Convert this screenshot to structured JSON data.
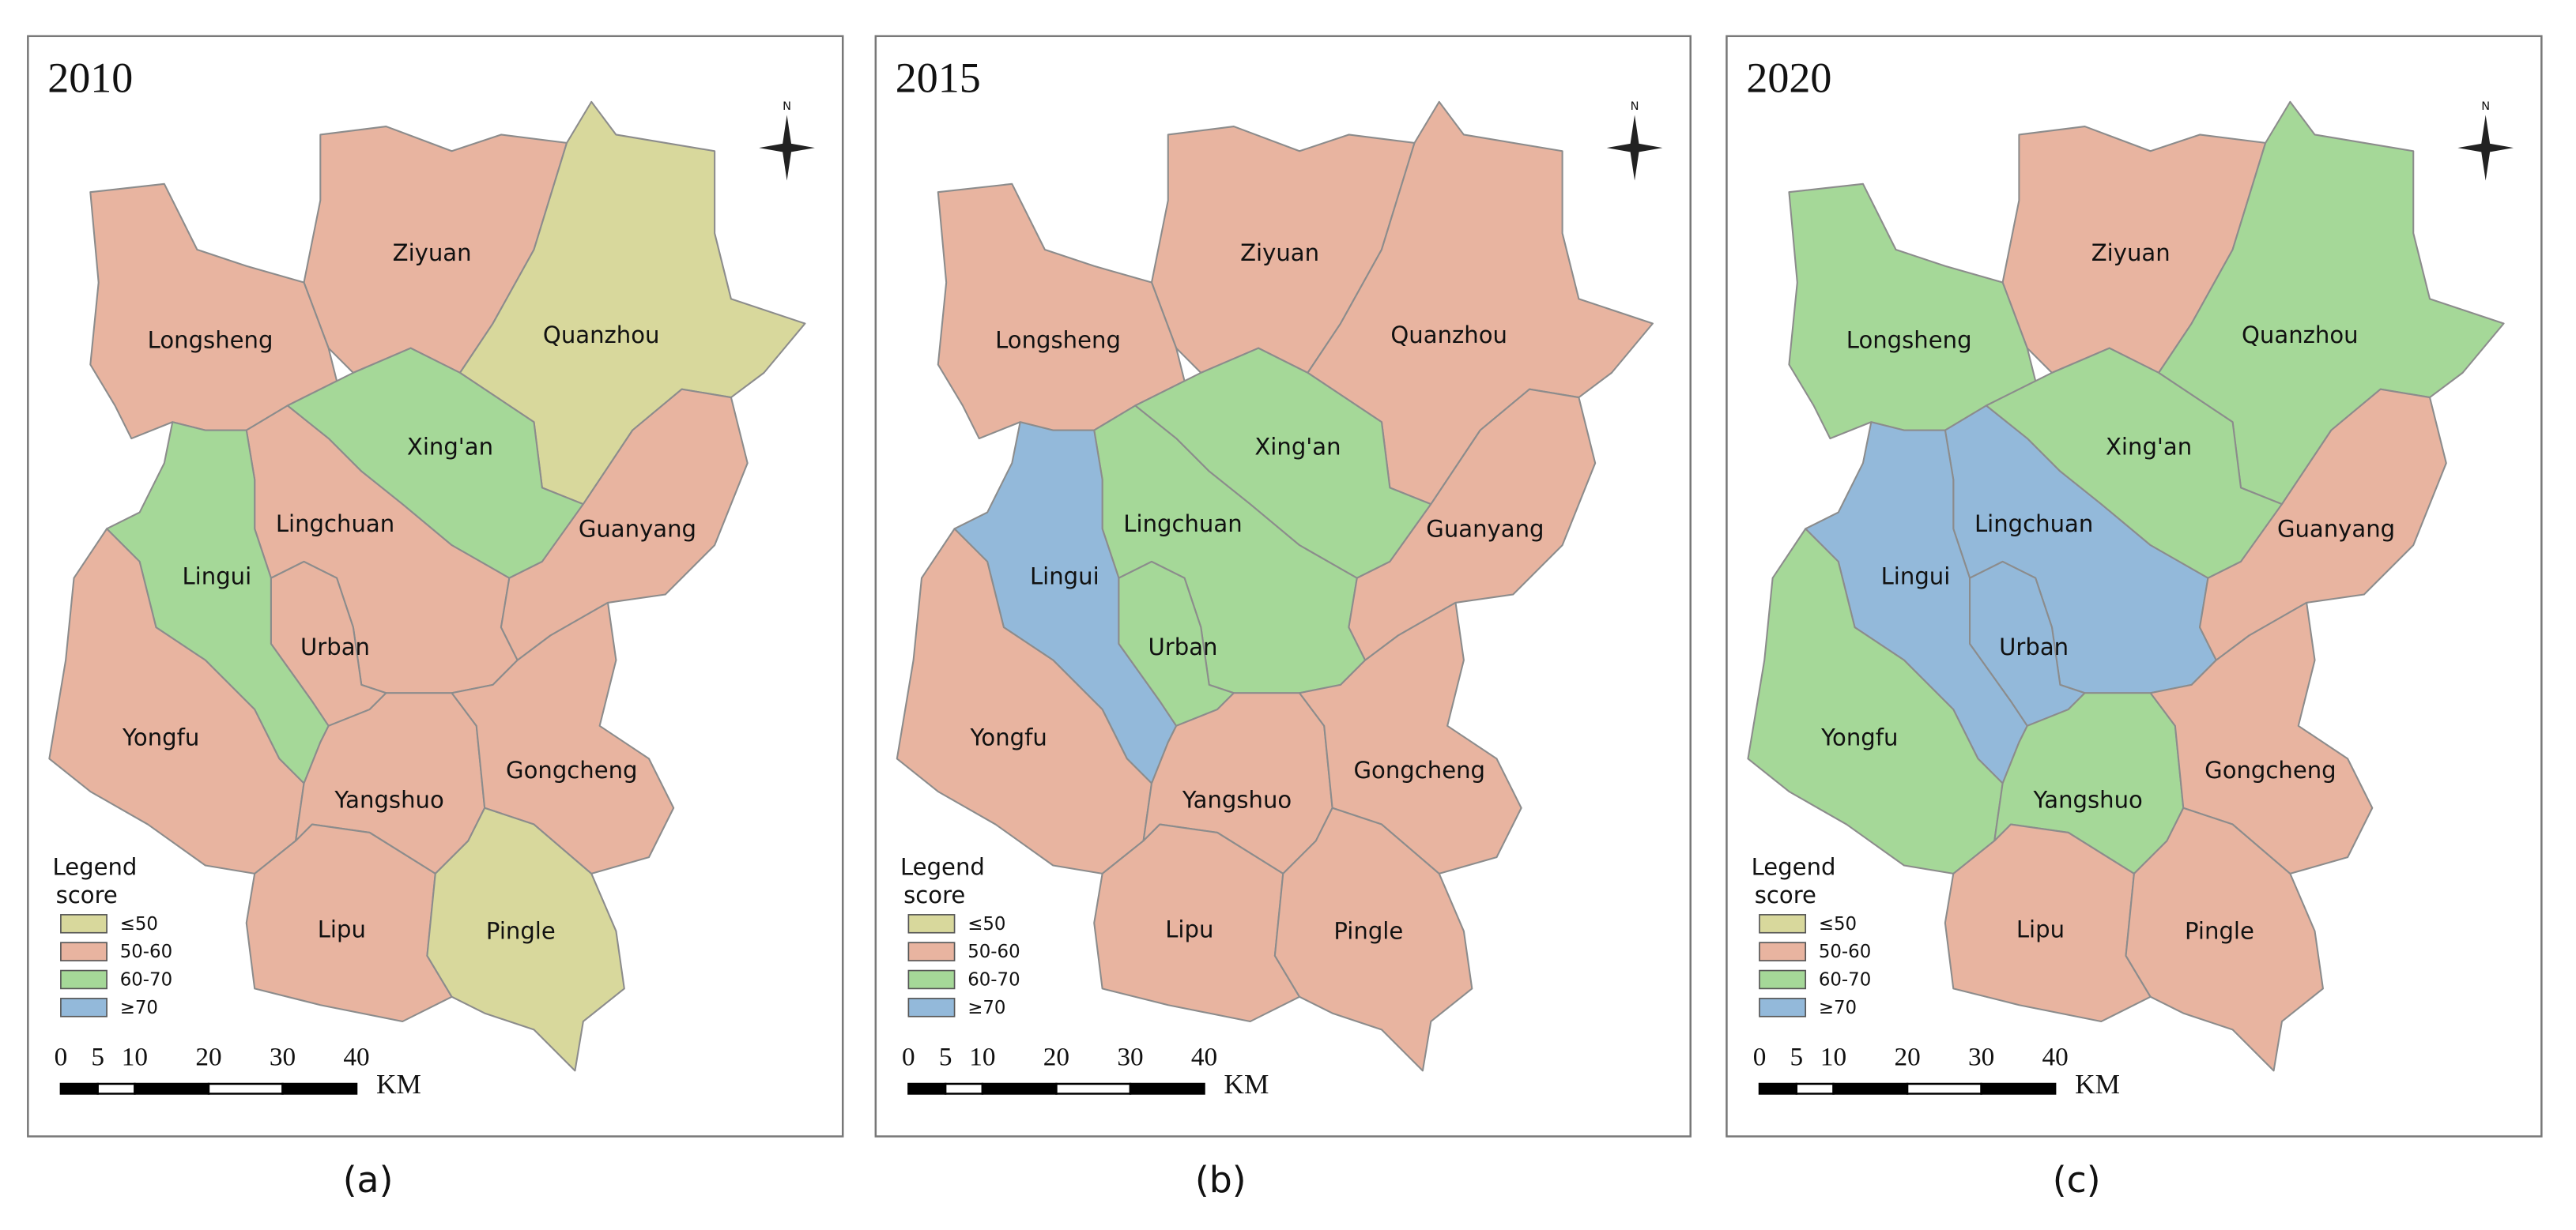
{
  "north": "N",
  "legend": {
    "title": "Legend",
    "subtitle": "score",
    "classes": [
      {
        "label": "≤50",
        "color": "#d8d89c"
      },
      {
        "label": "50-60",
        "color": "#e8b4a0"
      },
      {
        "label": "60-70",
        "color": "#a5d898"
      },
      {
        "label": "≥70",
        "color": "#93b9da"
      }
    ]
  },
  "scale_bar": {
    "ticks": [
      0,
      5,
      10,
      20,
      30,
      40
    ],
    "unit": "KM"
  },
  "regions": [
    "Ziyuan",
    "Longsheng",
    "Quanzhou",
    "Xing'an",
    "Lingchuan",
    "Guanyang",
    "Lingui",
    "Urban",
    "Yongfu",
    "Yangshuo",
    "Gongcheng",
    "Lipu",
    "Pingle"
  ],
  "panels": [
    {
      "year": "2010",
      "caption": "(a)",
      "classes": [
        1,
        1,
        0,
        2,
        1,
        1,
        2,
        1,
        1,
        1,
        1,
        1,
        0
      ]
    },
    {
      "year": "2015",
      "caption": "(b)",
      "classes": [
        1,
        1,
        1,
        2,
        2,
        1,
        3,
        2,
        1,
        1,
        1,
        1,
        1
      ]
    },
    {
      "year": "2020",
      "caption": "(c)",
      "classes": [
        1,
        2,
        2,
        2,
        3,
        1,
        3,
        3,
        2,
        2,
        1,
        1,
        1
      ]
    }
  ]
}
